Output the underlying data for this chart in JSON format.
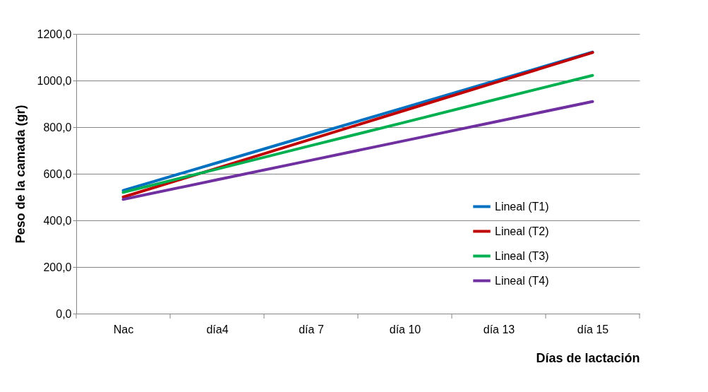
{
  "chart_data": {
    "type": "line",
    "xlabel": "Días de lactación",
    "ylabel": "Peso de la camada (gr)",
    "categories": [
      "Nac",
      "día4",
      "día 7",
      "día 10",
      "día 13",
      "día 15"
    ],
    "series": [
      {
        "name": "Lineal (T1)",
        "color": "#0070c0",
        "values": [
          528,
          647,
          766,
          884,
          1003,
          1122
        ]
      },
      {
        "name": "Lineal (T2)",
        "color": "#c00000",
        "values": [
          500,
          624,
          748,
          872,
          996,
          1120
        ]
      },
      {
        "name": "Lineal (T3)",
        "color": "#00b050",
        "values": [
          520,
          620,
          721,
          821,
          922,
          1022
        ]
      },
      {
        "name": "Lineal (T4)",
        "color": "#7030a0",
        "values": [
          490,
          574,
          658,
          742,
          826,
          910
        ]
      }
    ],
    "ylim": [
      0,
      1200
    ],
    "yticks": [
      {
        "value": 0,
        "label": "0,0"
      },
      {
        "value": 200,
        "label": "200,0"
      },
      {
        "value": 400,
        "label": "400,0"
      },
      {
        "value": 600,
        "label": "600,0"
      },
      {
        "value": 800,
        "label": "800,0"
      },
      {
        "value": 1000,
        "label": "1000,0"
      },
      {
        "value": 1200,
        "label": "1200,0"
      }
    ],
    "grid": "y",
    "legend": "right",
    "marker": "none",
    "line_style": "solid"
  }
}
